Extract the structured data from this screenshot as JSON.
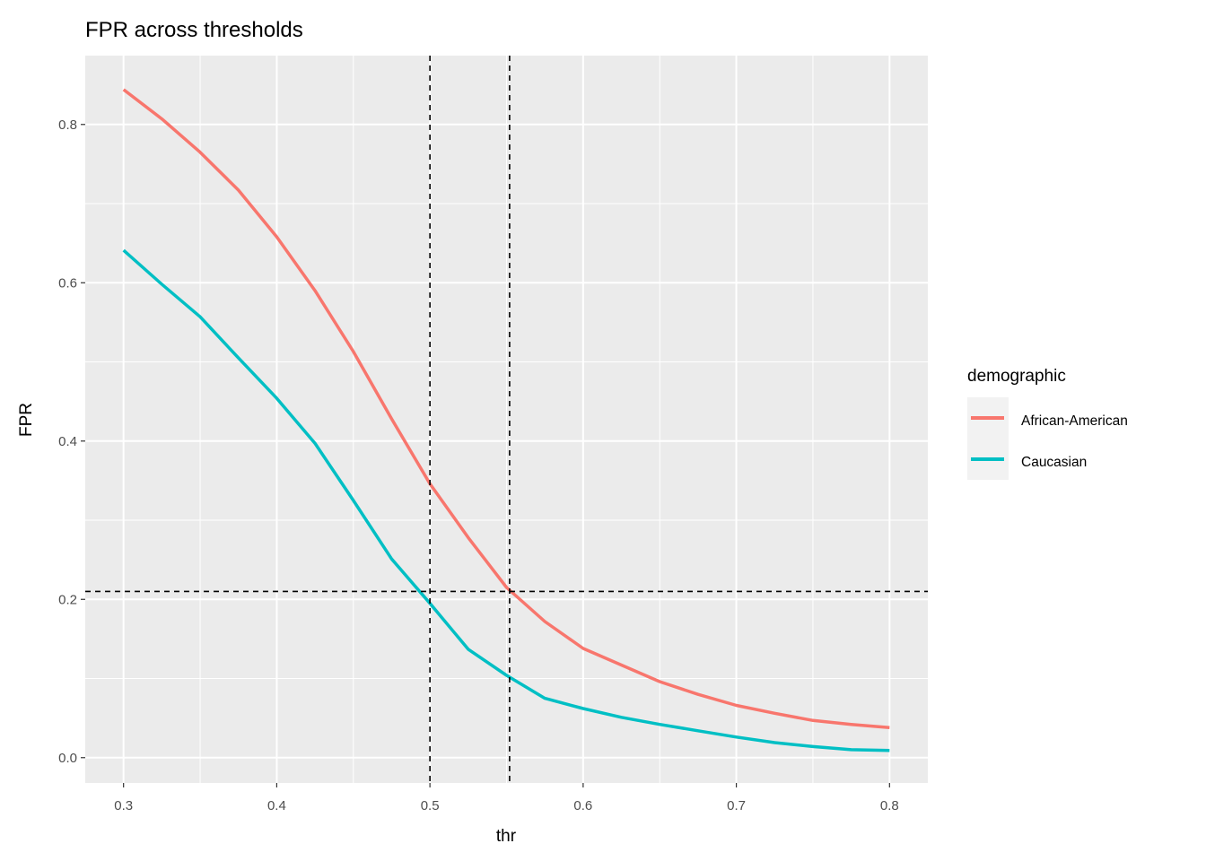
{
  "chart_data": {
    "type": "line",
    "title": "FPR across thresholds",
    "xlabel": "thr",
    "ylabel": "FPR",
    "xlim": [
      0.275,
      0.825
    ],
    "ylim": [
      -0.032,
      0.887
    ],
    "x_ticks": [
      "0.3",
      "0.4",
      "0.5",
      "0.6",
      "0.7",
      "0.8"
    ],
    "y_ticks": [
      "0.0",
      "0.2",
      "0.4",
      "0.6",
      "0.8"
    ],
    "grid": true,
    "legend": {
      "title": "demographic",
      "position": "right"
    },
    "x": [
      0.3,
      0.325,
      0.35,
      0.375,
      0.4,
      0.425,
      0.45,
      0.475,
      0.5,
      0.525,
      0.55,
      0.575,
      0.6,
      0.625,
      0.65,
      0.675,
      0.7,
      0.725,
      0.75,
      0.775,
      0.8
    ],
    "series": [
      {
        "name": "African-American",
        "color": "#F8766D",
        "values": [
          0.844,
          0.807,
          0.765,
          0.717,
          0.658,
          0.59,
          0.513,
          0.428,
          0.346,
          0.278,
          0.215,
          0.172,
          0.138,
          0.117,
          0.096,
          0.08,
          0.066,
          0.056,
          0.047,
          0.042,
          0.038
        ]
      },
      {
        "name": "Caucasian",
        "color": "#00BFC4",
        "values": [
          0.641,
          0.598,
          0.557,
          0.505,
          0.454,
          0.397,
          0.325,
          0.251,
          0.195,
          0.137,
          0.104,
          0.075,
          0.062,
          0.051,
          0.042,
          0.034,
          0.026,
          0.019,
          0.014,
          0.01,
          0.009
        ]
      }
    ],
    "reference_lines": {
      "vertical": [
        0.5,
        0.552
      ],
      "horizontal": [
        0.21
      ],
      "style": "dashed",
      "color": "#000000"
    }
  }
}
